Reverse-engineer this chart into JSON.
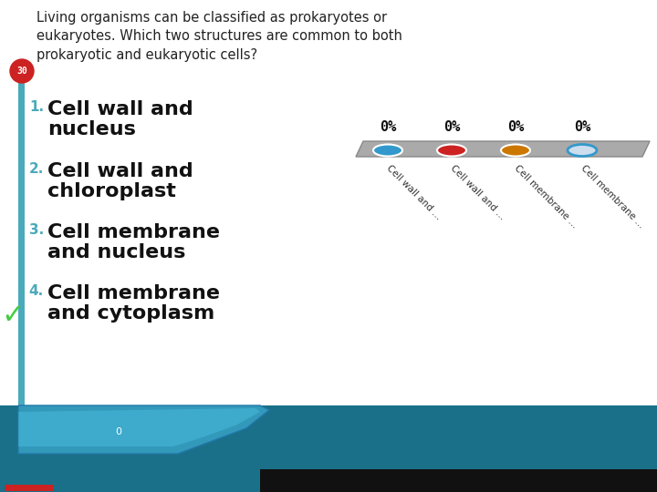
{
  "question_number": "30",
  "question_number_bg": "#cc2222",
  "question_text": "Living organisms can be classified as prokaryotes or\neukaryotes. Which two structures are common to both\nprokaryotic and eukaryotic cells?",
  "options": [
    {
      "num": "1.",
      "text": "Cell wall and\nnucleus"
    },
    {
      "num": "2.",
      "text": "Cell wall and\nchloroplast"
    },
    {
      "num": "3.",
      "text": "Cell membrane\nand nucleus"
    },
    {
      "num": "4.",
      "text": "Cell membrane\nand cytoplasm"
    }
  ],
  "num_colors": [
    "#4aaabb",
    "#4aaabb",
    "#4aaabb",
    "#4aaabb"
  ],
  "bar_labels": [
    "Cell wall and ...",
    "Cell wall and ...",
    "Cell membrane ...",
    "Cell membrane ..."
  ],
  "bar_values": [
    "0%",
    "0%",
    "0%",
    "0%"
  ],
  "bar_oval_colors": [
    "#3399cc",
    "#cc2222",
    "#cc7700",
    "#3399cc"
  ],
  "bar_oval_filled": [
    true,
    true,
    true,
    false
  ],
  "correct_answer": 4,
  "bg_color": "#ffffff",
  "left_bar_color": "#4aaabb",
  "bottom_teal_color": "#2288aa",
  "bottom_dark_color": "#1a6677"
}
